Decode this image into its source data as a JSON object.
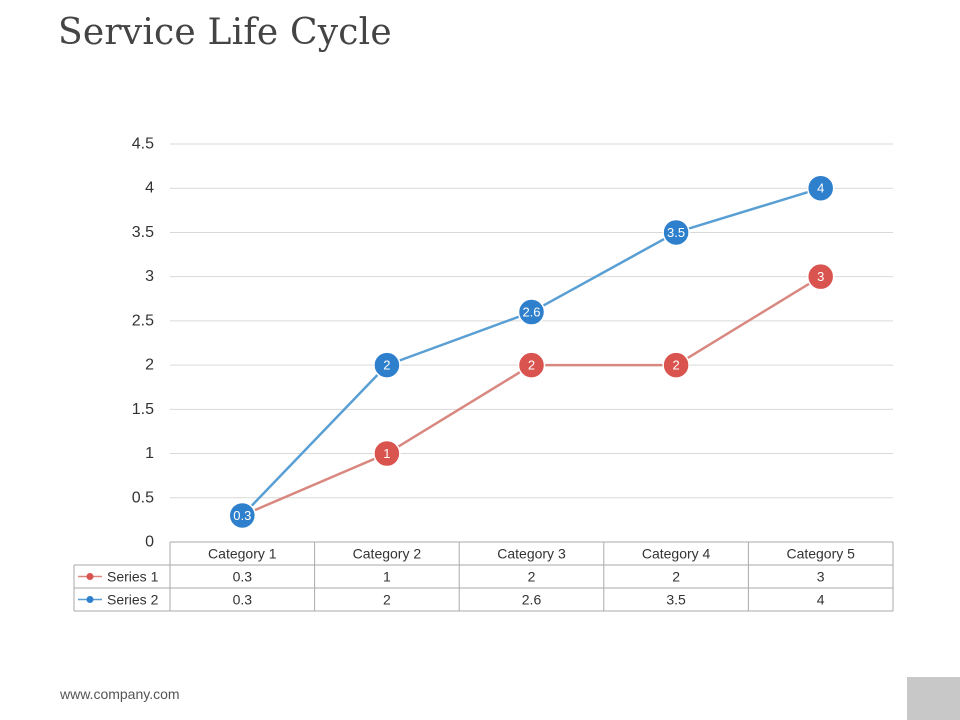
{
  "title": "Service Life Cycle",
  "footer": {
    "url": "www.company.com"
  },
  "chart_data": {
    "type": "line",
    "title": "",
    "xlabel": "",
    "ylabel": "",
    "ylim": [
      0,
      4.5
    ],
    "yticks": [
      0,
      0.5,
      1,
      1.5,
      2,
      2.5,
      3,
      3.5,
      4,
      4.5
    ],
    "ytick_labels": [
      "0",
      "0.5",
      "1",
      "1.5",
      "2",
      "2.5",
      "3",
      "3.5",
      "4",
      "4.5"
    ],
    "grid": true,
    "legend": "data-table-bottom",
    "categories": [
      "Category 1",
      "Category 2",
      "Category 3",
      "Category 4",
      "Category 5"
    ],
    "series": [
      {
        "name": "Series 1",
        "color": "#d9534f",
        "line_color": "#d98880",
        "values": [
          0.3,
          1,
          2,
          2,
          3
        ],
        "value_labels": [
          "0.3",
          "1",
          "2",
          "2",
          "3"
        ]
      },
      {
        "name": "Series 2",
        "color": "#2e7fcc",
        "line_color": "#5a9fd4",
        "values": [
          0.3,
          2,
          2.6,
          3.5,
          4
        ],
        "value_labels": [
          "0.3",
          "2",
          "2.6",
          "3.5",
          "4"
        ]
      }
    ]
  },
  "colors": {
    "grid": "#d9d9d9",
    "table_border": "#aaaaaa",
    "corner_box": "#c8c8c8"
  }
}
